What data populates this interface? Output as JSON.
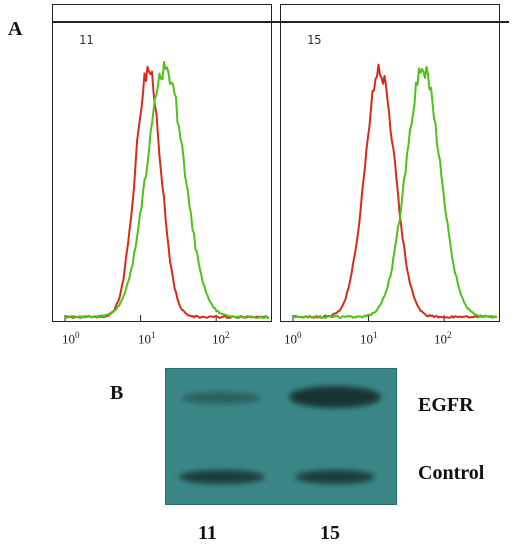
{
  "panel_a_letter": "A",
  "panel_b_letter": "B",
  "histograms": [
    {
      "sample": "11",
      "tick_base": "10",
      "tick_exponents": [
        "0",
        "1",
        "2"
      ],
      "curves": [
        {
          "color": "#d82a1a",
          "peak_log": 1.1,
          "width": 0.17
        },
        {
          "color": "#4fc21a",
          "peak_log": 1.33,
          "width": 0.25
        }
      ]
    },
    {
      "sample": "15",
      "tick_base": "10",
      "tick_exponents": [
        "0",
        "1",
        "2"
      ],
      "curves": [
        {
          "color": "#d82a1a",
          "peak_log": 1.15,
          "width": 0.2
        },
        {
          "color": "#4fc21a",
          "peak_log": 1.72,
          "width": 0.23
        }
      ]
    }
  ],
  "blot": {
    "bands": [
      "EGFR",
      "Control"
    ],
    "lanes": [
      "11",
      "15"
    ],
    "colors": {
      "membrane": "#3b8788",
      "band": "#16302f"
    }
  },
  "chart_data": [
    {
      "type": "line",
      "title": "11",
      "xscale": "log",
      "xlim": [
        1,
        500
      ],
      "x_ticks": [
        "10^0",
        "10^1",
        "10^2"
      ],
      "series": [
        {
          "color": "red",
          "peak_x": 12.6
        },
        {
          "color": "green",
          "peak_x": 21.4
        }
      ]
    },
    {
      "type": "line",
      "title": "15",
      "xscale": "log",
      "xlim": [
        1,
        500
      ],
      "x_ticks": [
        "10^0",
        "10^1",
        "10^2"
      ],
      "series": [
        {
          "color": "red",
          "peak_x": 14.1
        },
        {
          "color": "green",
          "peak_x": 52.5
        }
      ]
    }
  ]
}
